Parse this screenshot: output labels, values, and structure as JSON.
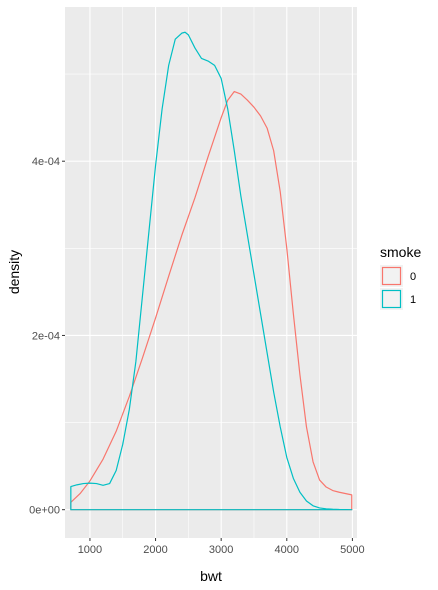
{
  "chart_data": {
    "type": "area",
    "title": "",
    "xlabel": "bwt",
    "ylabel": "density",
    "xlim": [
      620,
      5070
    ],
    "ylim": [
      -3.25e-05,
      0.000577
    ],
    "xticks": [
      1000,
      2000,
      3000,
      4000,
      5000
    ],
    "xtick_labels": [
      "1000",
      "2000",
      "3000",
      "4000",
      "5000"
    ],
    "yticks": [
      0,
      0.0002,
      0.0004
    ],
    "ytick_labels": [
      "0e+00",
      "2e-04",
      "4e-04"
    ],
    "grid": true,
    "legend_placement": "right",
    "legend_title": "smoke",
    "series": [
      {
        "name": "0",
        "color": "#F8766D",
        "x": [
          709,
          850,
          1000,
          1200,
          1400,
          1600,
          1800,
          2000,
          2200,
          2400,
          2600,
          2800,
          3000,
          3100,
          3200,
          3300,
          3400,
          3500,
          3600,
          3700,
          3800,
          3900,
          4000,
          4100,
          4200,
          4300,
          4400,
          4500,
          4600,
          4700,
          4800,
          4990
        ],
        "values": [
          8.5e-06,
          1.85e-05,
          3.3e-05,
          5.8e-05,
          9e-05,
          0.00013,
          0.000174,
          0.00022,
          0.000268,
          0.000315,
          0.000358,
          0.000405,
          0.00045,
          0.00047,
          0.00048,
          0.000477,
          0.00047,
          0.000462,
          0.000452,
          0.000438,
          0.000412,
          0.000365,
          0.0003,
          0.000225,
          0.000155,
          9.5e-05,
          5.5e-05,
          3.4e-05,
          2.6e-05,
          2.2e-05,
          2e-05,
          1.7e-05
        ]
      },
      {
        "name": "1",
        "color": "#00BFC4",
        "x": [
          709,
          800,
          900,
          1000,
          1100,
          1200,
          1300,
          1400,
          1500,
          1600,
          1700,
          1800,
          1900,
          2000,
          2100,
          2200,
          2300,
          2400,
          2450,
          2500,
          2600,
          2700,
          2800,
          2900,
          3000,
          3100,
          3200,
          3300,
          3400,
          3500,
          3600,
          3700,
          3800,
          3900,
          4000,
          4100,
          4200,
          4300,
          4400,
          4500,
          4600,
          4700,
          4800,
          4900,
          4990
        ],
        "values": [
          2.65e-05,
          2.85e-05,
          3e-05,
          3.05e-05,
          3e-05,
          2.8e-05,
          3e-05,
          4.5e-05,
          7.5e-05,
          0.000115,
          0.00017,
          0.000245,
          0.00032,
          0.000395,
          0.00046,
          0.00051,
          0.00054,
          0.000547,
          0.000548,
          0.000545,
          0.00053,
          0.000518,
          0.000515,
          0.00051,
          0.000495,
          0.00046,
          0.000412,
          0.00036,
          0.000315,
          0.00027,
          0.000225,
          0.00018,
          0.000135,
          9.5e-05,
          6e-05,
          3.6e-05,
          2e-05,
          1e-05,
          4.5e-06,
          2e-06,
          1e-06,
          5e-07,
          2e-07,
          1e-07,
          0.0
        ]
      }
    ]
  }
}
